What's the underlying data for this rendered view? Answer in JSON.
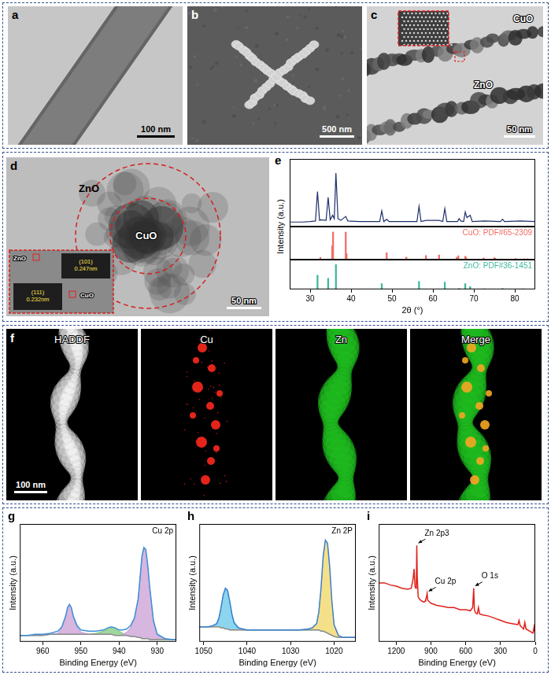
{
  "images": [
    {
      "panel": "a",
      "scale_bar": "100 nm"
    },
    {
      "panel": "b",
      "scale_bar": "500 nm"
    },
    {
      "panel": "c",
      "labels": [
        "ZnO",
        "CuO"
      ],
      "scale_bar": "50 nm"
    },
    {
      "panel": "d",
      "labels": [
        "ZnO",
        "CuO"
      ],
      "inset_labels": [
        "ZnO",
        "CuO"
      ],
      "inset_fringes": [
        "(101) 0.247nm",
        "(111) 0.232nm"
      ],
      "scale_bar": "50 nm"
    },
    {
      "panel": "f",
      "maps": [
        "HADDF",
        "Cu",
        "Zn",
        "Merge"
      ],
      "scale_bar": "100 nm"
    }
  ],
  "chart_data": [
    {
      "panel": "e",
      "type": "line",
      "x_label": "2θ (°)",
      "y_label": "Intensity (a.u.)",
      "xlim": [
        25,
        85
      ],
      "xticks": [
        30,
        40,
        50,
        60,
        70,
        80
      ],
      "ylim": [
        0,
        120
      ],
      "tick_labels": "x",
      "grid": false,
      "series": [
        {
          "color": "#1f2f6b",
          "x": [
            25,
            28,
            30,
            31.3,
            31.8,
            32.3,
            32.6,
            33.9,
            34.4,
            34.9,
            35.5,
            35.9,
            36.3,
            36.8,
            37.5,
            38.7,
            39.2,
            42,
            47,
            47.5,
            48,
            48.7,
            49.3,
            53.5,
            56.1,
            56.6,
            57.1,
            58.3,
            61.5,
            62.4,
            62.9,
            63.4,
            66,
            66.4,
            66.8,
            67.5,
            67.9,
            68.3,
            69.1,
            69.6,
            72.6,
            76.5,
            77,
            77.5,
            81.4,
            85
          ],
          "values": [
            8,
            8,
            9,
            10,
            62,
            11,
            12,
            11,
            52,
            12,
            20,
            14,
            95,
            14,
            11,
            18,
            10,
            9,
            9,
            28,
            9,
            13,
            9,
            9,
            9,
            36,
            9,
            11,
            11,
            9,
            32,
            9,
            9,
            14,
            10,
            9,
            26,
            16,
            20,
            9,
            10,
            9,
            13,
            9,
            10,
            9
          ]
        },
        {
          "name": "CuO: PDF#65-2309",
          "type": "bar",
          "color": "#f26c64",
          "x": [
            32.5,
            35.4,
            35.6,
            38.7,
            38.9,
            46.3,
            48.7,
            51.3,
            53.5,
            56.7,
            58.3,
            61.5,
            65.8,
            66.2,
            67.9,
            68.1,
            72.4,
            75,
            75.2,
            80.2,
            82.3,
            83.1
          ],
          "values": [
            8,
            50,
            100,
            100,
            22,
            2,
            25,
            2,
            9,
            2,
            15,
            17,
            8,
            14,
            12,
            8,
            6,
            7,
            5,
            4,
            3,
            3
          ]
        },
        {
          "name": "ZnO: PDF#36-1451",
          "type": "bar",
          "color": "#3fb89c",
          "x": [
            31.8,
            34.4,
            36.3,
            47.5,
            56.6,
            62.9,
            66.4,
            67.9,
            69.1,
            72.6,
            77,
            81.4,
            82.1
          ],
          "values": [
            57,
            44,
            100,
            23,
            32,
            29,
            4,
            23,
            11,
            2,
            4,
            1,
            2
          ]
        }
      ]
    },
    {
      "panel": "g",
      "type": "line",
      "title": "Cu 2p",
      "x_label": "Binding Energy (eV)",
      "y_label": "Intensity (a.u.)",
      "xlim": [
        966,
        925
      ],
      "xticks": [
        960,
        950,
        940,
        930
      ],
      "ylim": [
        0,
        110
      ],
      "tick_labels": "x",
      "grid": false,
      "x": [
        966,
        964,
        962,
        960,
        958,
        956,
        955,
        954,
        953.5,
        953,
        952.5,
        952,
        951,
        950,
        948,
        946,
        944,
        943,
        942,
        941,
        940,
        939,
        938,
        937,
        936,
        935,
        934.5,
        934,
        933.5,
        933,
        932.5,
        932,
        931,
        930,
        928,
        926,
        925
      ],
      "series": [
        {
          "type": "line",
          "color": "#8c8c8c",
          "values": [
            6,
            6,
            6,
            6,
            7,
            7,
            7,
            7,
            7,
            7,
            7,
            7,
            7,
            7,
            7,
            7,
            7,
            7,
            7,
            6,
            6,
            6,
            6,
            5,
            5,
            4,
            4,
            3,
            3,
            3,
            3,
            2,
            2,
            2,
            2,
            2,
            2
          ]
        },
        {
          "type": "area",
          "color": "#c99bd4",
          "values": [
            6,
            6,
            6,
            6,
            7,
            8,
            13,
            23,
            31,
            34,
            31,
            23,
            14,
            9,
            7,
            7,
            7,
            7,
            7,
            6,
            6,
            7,
            9,
            13,
            21,
            39,
            59,
            79,
            87,
            85,
            71,
            51,
            19,
            6,
            3,
            2,
            2
          ]
        },
        {
          "type": "area",
          "color": "#7cc87a",
          "values": [
            6,
            6,
            6,
            6,
            7,
            7,
            7,
            7,
            7,
            7,
            7,
            7,
            7,
            7,
            7,
            8,
            10,
            12,
            13,
            12,
            10,
            8,
            6,
            5,
            5,
            4,
            4,
            3,
            3,
            3,
            3,
            2,
            2,
            2,
            2,
            2,
            2
          ]
        },
        {
          "type": "line",
          "color": "#3c8fd8",
          "values": [
            6,
            6,
            7,
            7,
            8,
            10,
            14,
            24,
            32,
            35,
            32,
            24,
            15,
            11,
            10,
            10,
            11,
            13,
            14,
            13,
            11,
            11,
            12,
            15,
            22,
            40,
            60,
            80,
            88,
            86,
            72,
            52,
            20,
            7,
            3,
            2,
            2
          ]
        }
      ]
    },
    {
      "panel": "h",
      "type": "line",
      "title": "Zn 2P",
      "x_label": "Binding Energy (eV)",
      "y_label": "Intensity (a.u.)",
      "xlim": [
        1051,
        1015
      ],
      "xticks": [
        1050,
        1040,
        1030,
        1020
      ],
      "ylim": [
        0,
        110
      ],
      "tick_labels": "x",
      "grid": false,
      "x": [
        1051,
        1050,
        1049,
        1048,
        1047,
        1046.5,
        1046,
        1045.5,
        1045,
        1044.5,
        1044,
        1043.5,
        1043,
        1042,
        1041,
        1040,
        1038,
        1036,
        1034,
        1032,
        1030,
        1028,
        1026,
        1025,
        1024,
        1023.5,
        1023,
        1022.5,
        1022,
        1021.5,
        1021,
        1020.5,
        1020,
        1019,
        1018,
        1017,
        1016,
        1015
      ],
      "series": [
        {
          "type": "line",
          "color": "#8c8c8c",
          "values": [
            14,
            14,
            14,
            14,
            14,
            14,
            13,
            13,
            12,
            12,
            11,
            11,
            11,
            11,
            11,
            11,
            11,
            11,
            11,
            11,
            11,
            11,
            11,
            11,
            11,
            11,
            10,
            10,
            9,
            8,
            7,
            6,
            5,
            4,
            4,
            4,
            4,
            4
          ]
        },
        {
          "type": "area",
          "color": "#62c6e6",
          "values": [
            14,
            14,
            14,
            14,
            16,
            21,
            31,
            43,
            49,
            47,
            37,
            25,
            17,
            12,
            11,
            11,
            11,
            11,
            11,
            11,
            11,
            11,
            11,
            11,
            11,
            11,
            10,
            10,
            9,
            8,
            7,
            6,
            5,
            4,
            4,
            4,
            4,
            4
          ]
        },
        {
          "type": "area",
          "color": "#f2d560",
          "values": [
            14,
            14,
            14,
            14,
            14,
            14,
            13,
            13,
            12,
            12,
            11,
            11,
            11,
            11,
            11,
            11,
            11,
            11,
            11,
            11,
            11,
            11,
            11,
            12,
            16,
            27,
            49,
            79,
            94,
            91,
            69,
            37,
            15,
            5,
            4,
            4,
            4,
            4
          ]
        },
        {
          "type": "line",
          "color": "#3b7fd0",
          "values": [
            14,
            14,
            14,
            15,
            17,
            22,
            32,
            44,
            50,
            48,
            38,
            26,
            18,
            13,
            12,
            11,
            11,
            11,
            11,
            11,
            11,
            11,
            12,
            13,
            17,
            28,
            50,
            80,
            95,
            92,
            70,
            38,
            16,
            6,
            4,
            4,
            4,
            4
          ]
        }
      ]
    },
    {
      "panel": "i",
      "type": "line",
      "x_label": "Binding Energy (eV)",
      "y_label": "Intensity (a.u.)",
      "xlim": [
        1350,
        0
      ],
      "xticks": [
        1200,
        900,
        600,
        300,
        0
      ],
      "ylim": [
        0,
        110
      ],
      "tick_labels": "x",
      "grid": false,
      "x": [
        1350,
        1300,
        1250,
        1200,
        1150,
        1100,
        1070,
        1055,
        1045,
        1038,
        1030,
        1026,
        1022,
        1018,
        1010,
        1000,
        980,
        960,
        950,
        945,
        940,
        933,
        928,
        920,
        900,
        850,
        800,
        750,
        700,
        650,
        600,
        560,
        540,
        531,
        525,
        515,
        500,
        490,
        480,
        450,
        400,
        350,
        300,
        250,
        200,
        150,
        140,
        130,
        120,
        100,
        90,
        80,
        50,
        20,
        10,
        0
      ],
      "series": [
        {
          "type": "line",
          "color": "#e0201b",
          "values": [
            55,
            55,
            53,
            52,
            50,
            49,
            50,
            58,
            68,
            52,
            50,
            55,
            90,
            60,
            42,
            40,
            38,
            37,
            38,
            40,
            41,
            45,
            39,
            38,
            36,
            34,
            33,
            32,
            32,
            30,
            30,
            29,
            32,
            50,
            30,
            27,
            26,
            32,
            26,
            25,
            24,
            22,
            20,
            18,
            17,
            16,
            20,
            15,
            14,
            12,
            18,
            12,
            10,
            8,
            14,
            6
          ]
        }
      ],
      "annotations": [
        {
          "text": "Zn 2p3",
          "x": 1022
        },
        {
          "text": "Cu 2p",
          "x": 933
        },
        {
          "text": "O 1s",
          "x": 531
        }
      ]
    }
  ]
}
